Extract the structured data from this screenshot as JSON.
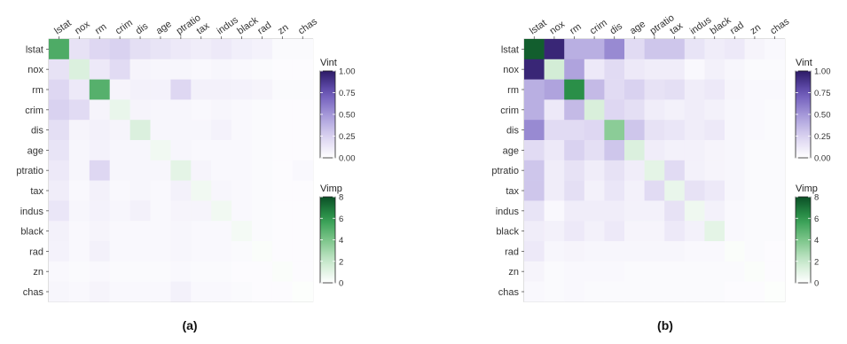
{
  "figure": {
    "panels": [
      {
        "label": "(a)"
      },
      {
        "label": "(b)"
      }
    ],
    "legend": {
      "vint": {
        "title": "Vint",
        "ticks": [
          "1.00",
          "0.75",
          "0.50",
          "0.25",
          "0.00"
        ],
        "range": [
          0,
          1
        ],
        "color_low": "#ffffff",
        "color_high": "#2d1a66"
      },
      "vimp": {
        "title": "Vimp",
        "ticks": [
          "8",
          "6",
          "4",
          "2",
          "0"
        ],
        "range": [
          0,
          8
        ],
        "color_low": "#ffffff",
        "color_high": "#0b4f26"
      }
    }
  },
  "chart_data": [
    {
      "type": "heatmap",
      "panel": "(a)",
      "x_labels": [
        "lstat",
        "nox",
        "rm",
        "crim",
        "dis",
        "age",
        "ptratio",
        "tax",
        "indus",
        "black",
        "rad",
        "zn",
        "chas"
      ],
      "y_labels": [
        "lstat",
        "nox",
        "rm",
        "crim",
        "dis",
        "age",
        "ptratio",
        "tax",
        "indus",
        "black",
        "rad",
        "zn",
        "chas"
      ],
      "diagonal_vimp": [
        5.2,
        1.3,
        5.0,
        0.8,
        1.3,
        0.5,
        1.0,
        0.5,
        0.5,
        0.4,
        0.2,
        0.2,
        0.1
      ],
      "vint": [
        [
          null,
          0.16,
          0.22,
          0.25,
          0.18,
          0.15,
          0.12,
          0.1,
          0.12,
          0.09,
          0.07,
          0.03,
          0.03
        ],
        [
          0.16,
          null,
          0.12,
          0.2,
          0.06,
          0.05,
          0.05,
          0.04,
          0.05,
          0.04,
          0.03,
          0.02,
          0.02
        ],
        [
          0.22,
          0.12,
          null,
          0.06,
          0.08,
          0.07,
          0.22,
          0.08,
          0.08,
          0.07,
          0.06,
          0.03,
          0.03
        ],
        [
          0.25,
          0.2,
          0.06,
          null,
          0.06,
          0.05,
          0.05,
          0.04,
          0.05,
          0.04,
          0.03,
          0.02,
          0.02
        ],
        [
          0.18,
          0.06,
          0.08,
          0.06,
          null,
          0.05,
          0.05,
          0.05,
          0.07,
          0.04,
          0.03,
          0.02,
          0.02
        ],
        [
          0.15,
          0.05,
          0.07,
          0.05,
          0.05,
          null,
          0.05,
          0.04,
          0.04,
          0.04,
          0.03,
          0.02,
          0.02
        ],
        [
          0.12,
          0.05,
          0.22,
          0.05,
          0.05,
          0.05,
          null,
          0.06,
          0.04,
          0.04,
          0.03,
          0.02,
          0.04
        ],
        [
          0.1,
          0.04,
          0.08,
          0.04,
          0.05,
          0.04,
          0.08,
          null,
          0.05,
          0.04,
          0.03,
          0.02,
          0.02
        ],
        [
          0.14,
          0.05,
          0.07,
          0.05,
          0.08,
          0.04,
          0.06,
          0.06,
          null,
          0.04,
          0.03,
          0.02,
          0.02
        ],
        [
          0.08,
          0.04,
          0.06,
          0.04,
          0.04,
          0.04,
          0.05,
          0.04,
          0.04,
          null,
          0.03,
          0.02,
          0.02
        ],
        [
          0.07,
          0.04,
          0.08,
          0.04,
          0.04,
          0.04,
          0.05,
          0.04,
          0.04,
          0.03,
          null,
          0.02,
          0.02
        ],
        [
          0.04,
          0.03,
          0.04,
          0.03,
          0.03,
          0.03,
          0.04,
          0.03,
          0.03,
          0.02,
          0.02,
          null,
          0.02
        ],
        [
          0.05,
          0.04,
          0.06,
          0.04,
          0.04,
          0.04,
          0.08,
          0.04,
          0.04,
          0.03,
          0.02,
          0.02,
          null
        ]
      ]
    },
    {
      "type": "heatmap",
      "panel": "(b)",
      "x_labels": [
        "lstat",
        "nox",
        "rm",
        "crim",
        "dis",
        "age",
        "ptratio",
        "tax",
        "indus",
        "black",
        "rad",
        "zn",
        "chas"
      ],
      "y_labels": [
        "lstat",
        "nox",
        "rm",
        "crim",
        "dis",
        "age",
        "ptratio",
        "tax",
        "indus",
        "black",
        "rad",
        "zn",
        "chas"
      ],
      "diagonal_vimp": [
        7.6,
        1.6,
        6.3,
        1.4,
        3.6,
        1.3,
        1.0,
        0.8,
        0.6,
        1.0,
        0.2,
        0.2,
        0.1
      ],
      "vint": [
        [
          null,
          0.95,
          0.4,
          0.4,
          0.55,
          0.2,
          0.3,
          0.3,
          0.15,
          0.1,
          0.12,
          0.06,
          0.04
        ],
        [
          0.95,
          null,
          0.45,
          0.12,
          0.2,
          0.12,
          0.1,
          0.1,
          0.04,
          0.08,
          0.05,
          0.03,
          0.03
        ],
        [
          0.4,
          0.45,
          null,
          0.35,
          0.2,
          0.25,
          0.16,
          0.18,
          0.1,
          0.12,
          0.06,
          0.04,
          0.04
        ],
        [
          0.4,
          0.12,
          0.35,
          null,
          0.22,
          0.18,
          0.1,
          0.08,
          0.1,
          0.08,
          0.05,
          0.04,
          0.03
        ],
        [
          0.55,
          0.2,
          0.2,
          0.22,
          null,
          0.3,
          0.16,
          0.14,
          0.1,
          0.12,
          0.05,
          0.04,
          0.03
        ],
        [
          0.2,
          0.12,
          0.25,
          0.18,
          0.3,
          null,
          0.1,
          0.08,
          0.08,
          0.06,
          0.05,
          0.03,
          0.03
        ],
        [
          0.3,
          0.1,
          0.16,
          0.1,
          0.16,
          0.1,
          null,
          0.2,
          0.08,
          0.06,
          0.05,
          0.03,
          0.03
        ],
        [
          0.3,
          0.1,
          0.18,
          0.08,
          0.14,
          0.08,
          0.2,
          null,
          0.16,
          0.12,
          0.05,
          0.03,
          0.03
        ],
        [
          0.15,
          0.04,
          0.1,
          0.1,
          0.1,
          0.08,
          0.08,
          0.16,
          null,
          0.08,
          0.04,
          0.03,
          0.03
        ],
        [
          0.1,
          0.08,
          0.12,
          0.08,
          0.12,
          0.06,
          0.06,
          0.12,
          0.08,
          null,
          0.04,
          0.03,
          0.03
        ],
        [
          0.12,
          0.05,
          0.06,
          0.05,
          0.05,
          0.05,
          0.05,
          0.05,
          0.04,
          0.04,
          null,
          0.03,
          0.02
        ],
        [
          0.06,
          0.03,
          0.04,
          0.04,
          0.04,
          0.03,
          0.03,
          0.03,
          0.03,
          0.03,
          0.03,
          null,
          0.02
        ],
        [
          0.04,
          0.03,
          0.04,
          0.03,
          0.03,
          0.03,
          0.03,
          0.03,
          0.03,
          0.03,
          0.02,
          0.02,
          null
        ]
      ]
    }
  ]
}
